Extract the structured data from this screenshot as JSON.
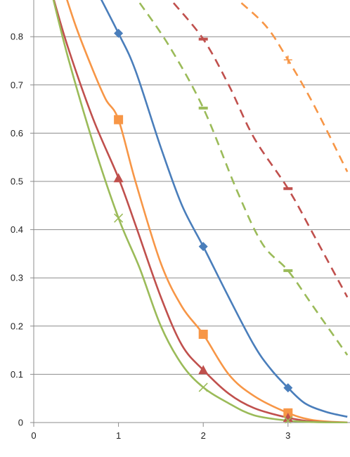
{
  "chart_data": {
    "type": "line",
    "title": "",
    "xlabel": "",
    "ylabel": "",
    "xlim": [
      0,
      3.7
    ],
    "ylim": [
      0,
      0.87
    ],
    "x_ticks": [
      0,
      1,
      2,
      3
    ],
    "x_tick_labels": [
      "0",
      "1",
      "2",
      "3"
    ],
    "y_ticks": [
      0,
      0.1,
      0.2,
      0.3,
      0.4,
      0.5,
      0.6,
      0.7,
      0.8
    ],
    "y_tick_labels": [
      "0",
      "0.1",
      "0.2",
      "0.3",
      "0.4",
      "0.5",
      "0.6",
      "0.7",
      "0.8"
    ],
    "grid": "horizontal",
    "legend": "none",
    "series": [
      {
        "color": "#4a7ebb",
        "marker": "diamond",
        "dashed": false,
        "points": [
          [
            0.7,
            0.91
          ],
          [
            1,
            0.807
          ],
          [
            1.2,
            0.73
          ],
          [
            1.5,
            0.57
          ],
          [
            1.75,
            0.45
          ],
          [
            2,
            0.365
          ],
          [
            2.3,
            0.26
          ],
          [
            2.6,
            0.16
          ],
          [
            2.8,
            0.11
          ],
          [
            3,
            0.072
          ],
          [
            3.2,
            0.04
          ],
          [
            3.45,
            0.022
          ],
          [
            3.7,
            0.012
          ]
        ],
        "markers_at": [
          [
            1,
            0.807
          ],
          [
            2,
            0.365
          ],
          [
            3,
            0.072
          ]
        ]
      },
      {
        "color": "#f79646",
        "marker": "square",
        "dashed": false,
        "points": [
          [
            0.35,
            0.9
          ],
          [
            0.5,
            0.82
          ],
          [
            0.7,
            0.73
          ],
          [
            0.85,
            0.67
          ],
          [
            1,
            0.628
          ],
          [
            1.2,
            0.5
          ],
          [
            1.5,
            0.33
          ],
          [
            1.75,
            0.24
          ],
          [
            2,
            0.183
          ],
          [
            2.3,
            0.1
          ],
          [
            2.6,
            0.055
          ],
          [
            3,
            0.02
          ],
          [
            3.3,
            0.005
          ],
          [
            3.7,
            0.0
          ]
        ],
        "markers_at": [
          [
            1,
            0.628
          ],
          [
            2,
            0.183
          ],
          [
            3,
            0.02
          ]
        ]
      },
      {
        "color": "#c0504d",
        "marker": "triangle",
        "dashed": false,
        "points": [
          [
            0.2,
            0.9
          ],
          [
            0.4,
            0.78
          ],
          [
            0.7,
            0.63
          ],
          [
            1,
            0.507
          ],
          [
            1.2,
            0.41
          ],
          [
            1.5,
            0.26
          ],
          [
            1.75,
            0.16
          ],
          [
            2,
            0.109
          ],
          [
            2.3,
            0.06
          ],
          [
            2.6,
            0.03
          ],
          [
            3,
            0.01
          ],
          [
            3.3,
            0.002
          ],
          [
            3.7,
            0.0
          ]
        ],
        "markers_at": [
          [
            1,
            0.507
          ],
          [
            2,
            0.109
          ],
          [
            3,
            0.01
          ]
        ]
      },
      {
        "color": "#9bbb59",
        "marker": "x",
        "dashed": false,
        "points": [
          [
            0.2,
            0.9
          ],
          [
            0.4,
            0.76
          ],
          [
            0.7,
            0.58
          ],
          [
            1,
            0.424
          ],
          [
            1.25,
            0.32
          ],
          [
            1.5,
            0.2
          ],
          [
            1.75,
            0.12
          ],
          [
            2,
            0.073
          ],
          [
            2.3,
            0.04
          ],
          [
            2.6,
            0.015
          ],
          [
            3,
            0.004
          ],
          [
            3.3,
            0.001
          ],
          [
            3.7,
            0.0
          ]
        ],
        "markers_at": [
          [
            1,
            0.424
          ],
          [
            2,
            0.073
          ],
          [
            3,
            0.004
          ]
        ]
      },
      {
        "color": "#9bbb59",
        "marker": "dash",
        "dashed": true,
        "points": [
          [
            1.25,
            0.87
          ],
          [
            1.6,
            0.78
          ],
          [
            2,
            0.652
          ],
          [
            2.4,
            0.48
          ],
          [
            2.7,
            0.37
          ],
          [
            3,
            0.315
          ],
          [
            3.3,
            0.24
          ],
          [
            3.7,
            0.14
          ]
        ],
        "markers_at": [
          [
            2,
            0.652
          ],
          [
            3,
            0.315
          ]
        ]
      },
      {
        "color": "#c0504d",
        "marker": "dash",
        "dashed": true,
        "points": [
          [
            1.65,
            0.87
          ],
          [
            2,
            0.795
          ],
          [
            2.3,
            0.7
          ],
          [
            2.6,
            0.59
          ],
          [
            3,
            0.485
          ],
          [
            3.3,
            0.39
          ],
          [
            3.7,
            0.26
          ]
        ],
        "markers_at": [
          [
            2,
            0.795
          ],
          [
            3,
            0.485
          ]
        ]
      },
      {
        "color": "#f79646",
        "marker": "plus",
        "dashed": true,
        "points": [
          [
            2.45,
            0.87
          ],
          [
            2.75,
            0.82
          ],
          [
            3,
            0.752
          ],
          [
            3.3,
            0.66
          ],
          [
            3.7,
            0.52
          ]
        ],
        "markers_at": [
          [
            3,
            0.752
          ]
        ]
      }
    ]
  }
}
